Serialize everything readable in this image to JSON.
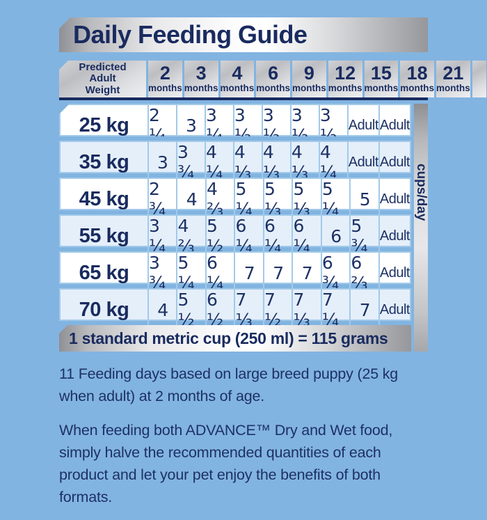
{
  "title": "Daily Feeding Guide",
  "table": {
    "corner_header": {
      "line1": "Predicted",
      "line2": "Adult",
      "line3": "Weight"
    },
    "unit_label": "cups/day",
    "month_columns": [
      {
        "number": "2",
        "unit": "months"
      },
      {
        "number": "3",
        "unit": "months"
      },
      {
        "number": "4",
        "unit": "months"
      },
      {
        "number": "6",
        "unit": "months"
      },
      {
        "number": "9",
        "unit": "months"
      },
      {
        "number": "12",
        "unit": "months"
      },
      {
        "number": "15",
        "unit": "months"
      },
      {
        "number": "18",
        "unit": "months"
      },
      {
        "number": "21",
        "unit": "months"
      }
    ],
    "rows": [
      {
        "weight": "25 kg",
        "values": [
          "2 ¼",
          "3",
          "3 ¼",
          "3 ½",
          "3 ½",
          "3 ⅓",
          "3 ⅓",
          "Adult",
          "Adult"
        ]
      },
      {
        "weight": "35 kg",
        "values": [
          "3",
          "3 ¾",
          "4 ¼",
          "4 ⅓",
          "4 ⅓",
          "4 ⅓",
          "4 ¼",
          "Adult",
          "Adult"
        ]
      },
      {
        "weight": "45 kg",
        "values": [
          "2 ¾",
          "4",
          "4 ⅔",
          "5 ¼",
          "5 ⅓",
          "5 ⅓",
          "5 ¼",
          "5",
          "Adult"
        ]
      },
      {
        "weight": "55 kg",
        "values": [
          "3 ¼",
          "4 ⅔",
          "5 ½",
          "6 ¼",
          "6 ¼",
          "6 ¼",
          "6",
          "5 ¾",
          "Adult"
        ]
      },
      {
        "weight": "65 kg",
        "values": [
          "3 ¾",
          "5 ¼",
          "6 ¼",
          "7",
          "7",
          "7",
          "6 ¾",
          "6 ⅔",
          "Adult"
        ]
      },
      {
        "weight": "70 kg",
        "values": [
          "4",
          "5 ½",
          "6 ½",
          "7 ⅓",
          "7 ½",
          "7 ⅓",
          "7 ¼",
          "7",
          "Adult"
        ]
      }
    ]
  },
  "cup_note": "1 standard metric cup (250 ml) = 115 grams",
  "footnotes": {
    "note1": "11 Feeding days based on large breed puppy (25 kg when adult) at 2 months of age.",
    "note2": "When feeding both ADVANCE™ Dry and Wet food, simply halve the recommended quantities of each product and let your pet enjoy the benefits of both formats."
  },
  "colors": {
    "background": "#82b4e1",
    "navy_text": "#192b5f",
    "table_border_blue": "#a2cae9",
    "alt_row_blue": "#e5effa",
    "silver_light": "#ffffff",
    "silver_dark": "#8f9095"
  },
  "chart_data": {
    "type": "table",
    "title": "Daily Feeding Guide",
    "unit": "cups/day",
    "note": "1 standard metric cup (250 ml) = 115 grams",
    "columns": [
      "Predicted Adult Weight",
      "2 months",
      "3 months",
      "4 months",
      "6 months",
      "9 months",
      "12 months",
      "15 months",
      "18 months",
      "21 months"
    ],
    "rows": [
      [
        "25 kg",
        "2 ¼",
        "3",
        "3 ¼",
        "3 ½",
        "3 ½",
        "3 ⅓",
        "3 ⅓",
        "Adult",
        "Adult"
      ],
      [
        "35 kg",
        "3",
        "3 ¾",
        "4 ¼",
        "4 ⅓",
        "4 ⅓",
        "4 ⅓",
        "4 ¼",
        "Adult",
        "Adult"
      ],
      [
        "45 kg",
        "2 ¾",
        "4",
        "4 ⅔",
        "5 ¼",
        "5 ⅓",
        "5 ⅓",
        "5 ¼",
        "5",
        "Adult"
      ],
      [
        "55 kg",
        "3 ¼",
        "4 ⅔",
        "5 ½",
        "6 ¼",
        "6 ¼",
        "6 ¼",
        "6",
        "5 ¾",
        "Adult"
      ],
      [
        "65 kg",
        "3 ¾",
        "5 ¼",
        "6 ¼",
        "7",
        "7",
        "7",
        "6 ¾",
        "6 ⅔",
        "Adult"
      ],
      [
        "70 kg",
        "4",
        "5 ½",
        "6 ½",
        "7 ⅓",
        "7 ½",
        "7 ⅓",
        "7 ¼",
        "7",
        "Adult"
      ]
    ]
  }
}
